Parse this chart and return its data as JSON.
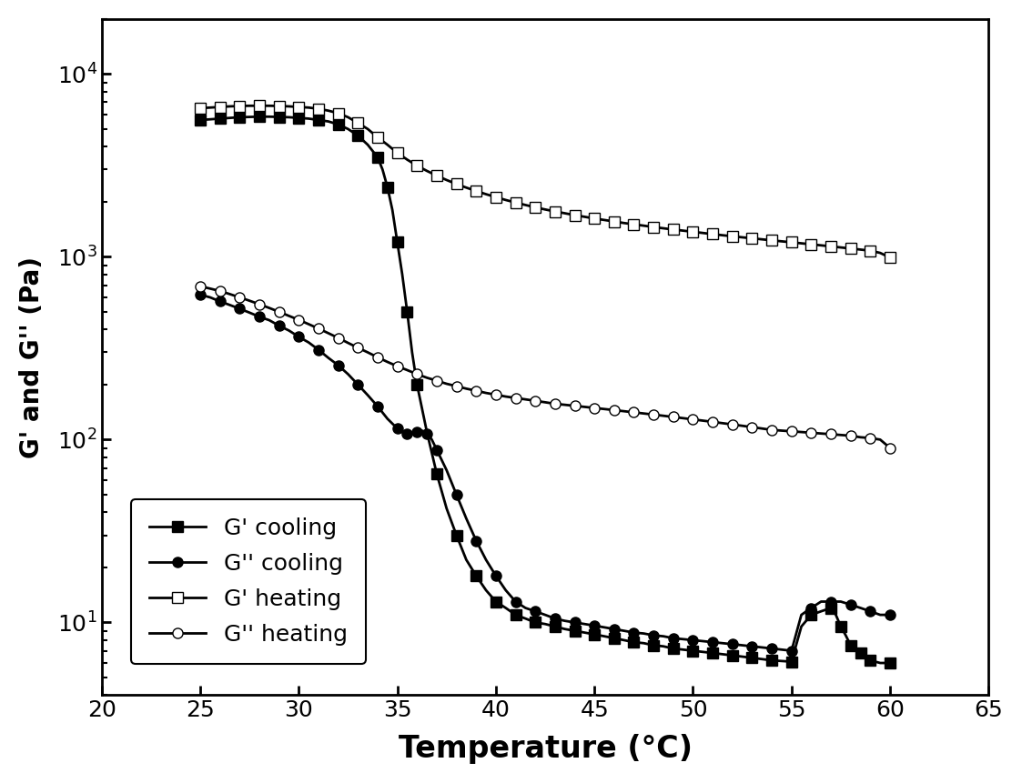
{
  "title": "",
  "xlabel": "Temperature (°C)",
  "ylabel": "G' and G'' (Pa)",
  "xlim": [
    20,
    65
  ],
  "ylim": [
    4,
    20000
  ],
  "background_color": "#ffffff",
  "G_prime_cooling_T": [
    25,
    25.5,
    26,
    26.5,
    27,
    27.5,
    28,
    28.5,
    29,
    29.5,
    30,
    30.5,
    31,
    31.5,
    32,
    32.5,
    33,
    33.5,
    34,
    34.25,
    34.5,
    34.75,
    35,
    35.25,
    35.5,
    35.75,
    36,
    36.5,
    37,
    37.5,
    38,
    38.5,
    39,
    39.5,
    40,
    40.5,
    41,
    41.5,
    42,
    42.5,
    43,
    43.5,
    44,
    44.5,
    45,
    45.5,
    46,
    46.5,
    47,
    47.5,
    48,
    48.5,
    49,
    49.5,
    50,
    50.5,
    51,
    51.5,
    52,
    52.5,
    53,
    53.5,
    54,
    54.5,
    55,
    55.5,
    56,
    56.5,
    57,
    57.25,
    57.5,
    57.75,
    58,
    58.25,
    58.5,
    58.75,
    59,
    59.5,
    60
  ],
  "G_prime_cooling_V": [
    5600,
    5650,
    5700,
    5750,
    5800,
    5820,
    5840,
    5840,
    5820,
    5800,
    5750,
    5700,
    5600,
    5500,
    5300,
    5000,
    4600,
    4100,
    3500,
    3000,
    2400,
    1800,
    1200,
    800,
    500,
    300,
    200,
    110,
    65,
    42,
    30,
    22,
    18,
    15,
    13,
    12,
    11,
    10.5,
    10,
    9.8,
    9.5,
    9.2,
    9.0,
    8.8,
    8.6,
    8.4,
    8.2,
    8.0,
    7.8,
    7.7,
    7.5,
    7.4,
    7.2,
    7.1,
    7.0,
    6.9,
    6.8,
    6.7,
    6.6,
    6.5,
    6.4,
    6.3,
    6.2,
    6.15,
    6.1,
    9.5,
    11,
    11.5,
    12,
    11,
    9.5,
    8.5,
    7.5,
    7.0,
    6.8,
    6.5,
    6.2,
    6.0,
    6.0
  ],
  "G_double_prime_cooling_T": [
    25,
    25.5,
    26,
    26.5,
    27,
    27.5,
    28,
    28.5,
    29,
    29.5,
    30,
    30.5,
    31,
    31.5,
    32,
    32.5,
    33,
    33.5,
    34,
    34.5,
    35,
    35.25,
    35.5,
    35.75,
    36,
    36.25,
    36.5,
    36.75,
    37,
    37.5,
    38,
    38.5,
    39,
    39.5,
    40,
    40.5,
    41,
    41.5,
    42,
    42.5,
    43,
    43.5,
    44,
    44.5,
    45,
    45.5,
    46,
    46.5,
    47,
    47.5,
    48,
    48.5,
    49,
    49.5,
    50,
    50.5,
    51,
    51.5,
    52,
    52.5,
    53,
    53.5,
    54,
    54.5,
    55,
    55.5,
    56,
    56.5,
    57,
    57.5,
    58,
    58.5,
    59,
    59.5,
    60
  ],
  "G_double_prime_cooling_V": [
    620,
    600,
    570,
    545,
    520,
    495,
    470,
    450,
    420,
    395,
    365,
    340,
    310,
    280,
    255,
    228,
    200,
    175,
    152,
    130,
    115,
    110,
    107,
    108,
    110,
    112,
    108,
    100,
    88,
    68,
    50,
    37,
    28,
    22,
    18,
    15,
    13,
    12,
    11.5,
    11,
    10.5,
    10.2,
    10,
    9.8,
    9.6,
    9.4,
    9.2,
    9.0,
    8.8,
    8.7,
    8.5,
    8.4,
    8.2,
    8.1,
    8.0,
    7.9,
    7.8,
    7.7,
    7.6,
    7.5,
    7.4,
    7.3,
    7.2,
    7.1,
    7.0,
    11,
    12,
    13,
    13,
    13,
    12.5,
    12,
    11.5,
    11,
    11
  ],
  "G_prime_heating_T": [
    25,
    25.5,
    26,
    26.5,
    27,
    27.5,
    28,
    28.5,
    29,
    29.5,
    30,
    30.5,
    31,
    31.5,
    32,
    32.5,
    33,
    33.5,
    34,
    34.5,
    35,
    35.5,
    36,
    36.5,
    37,
    37.5,
    38,
    38.5,
    39,
    39.5,
    40,
    40.5,
    41,
    41.5,
    42,
    42.5,
    43,
    43.5,
    44,
    44.5,
    45,
    45.5,
    46,
    46.5,
    47,
    47.5,
    48,
    48.5,
    49,
    49.5,
    50,
    50.5,
    51,
    51.5,
    52,
    52.5,
    53,
    53.5,
    54,
    54.5,
    55,
    55.5,
    56,
    56.5,
    57,
    57.5,
    58,
    58.5,
    59,
    59.5,
    60
  ],
  "G_prime_heating_V": [
    6500,
    6550,
    6600,
    6650,
    6680,
    6700,
    6700,
    6700,
    6680,
    6650,
    6600,
    6550,
    6450,
    6300,
    6100,
    5800,
    5400,
    5000,
    4500,
    4100,
    3700,
    3400,
    3150,
    2950,
    2780,
    2630,
    2500,
    2390,
    2290,
    2200,
    2120,
    2045,
    1980,
    1920,
    1865,
    1815,
    1770,
    1730,
    1690,
    1655,
    1620,
    1590,
    1560,
    1530,
    1505,
    1480,
    1455,
    1432,
    1410,
    1390,
    1370,
    1350,
    1330,
    1312,
    1295,
    1278,
    1262,
    1246,
    1230,
    1215,
    1200,
    1185,
    1170,
    1155,
    1140,
    1125,
    1110,
    1095,
    1080,
    1050,
    990
  ],
  "G_double_prime_heating_T": [
    25,
    25.5,
    26,
    26.5,
    27,
    27.5,
    28,
    28.5,
    29,
    29.5,
    30,
    30.5,
    31,
    31.5,
    32,
    32.5,
    33,
    33.5,
    34,
    34.5,
    35,
    35.5,
    36,
    36.5,
    37,
    37.5,
    38,
    38.5,
    39,
    39.5,
    40,
    40.5,
    41,
    41.5,
    42,
    42.5,
    43,
    43.5,
    44,
    44.5,
    45,
    45.5,
    46,
    46.5,
    47,
    47.5,
    48,
    48.5,
    49,
    49.5,
    50,
    50.5,
    51,
    51.5,
    52,
    52.5,
    53,
    53.5,
    54,
    54.5,
    55,
    55.5,
    56,
    56.5,
    57,
    57.5,
    58,
    58.5,
    59,
    59.5,
    60
  ],
  "G_double_prime_heating_V": [
    690,
    670,
    650,
    625,
    600,
    575,
    550,
    525,
    500,
    475,
    452,
    428,
    405,
    382,
    360,
    338,
    318,
    300,
    282,
    266,
    252,
    240,
    228,
    218,
    210,
    202,
    196,
    190,
    185,
    180,
    176,
    172,
    169,
    166,
    163,
    160,
    157,
    155,
    153,
    151,
    149,
    147,
    145,
    143,
    141,
    139,
    137,
    135,
    133,
    131,
    129,
    127,
    125,
    123,
    121,
    119,
    117,
    115,
    113,
    112,
    111,
    110,
    109,
    108,
    107,
    106,
    105,
    103,
    102,
    100,
    90
  ],
  "legend_labels": [
    "G' cooling",
    "G'' cooling",
    "G' heating",
    "G'' heating"
  ]
}
